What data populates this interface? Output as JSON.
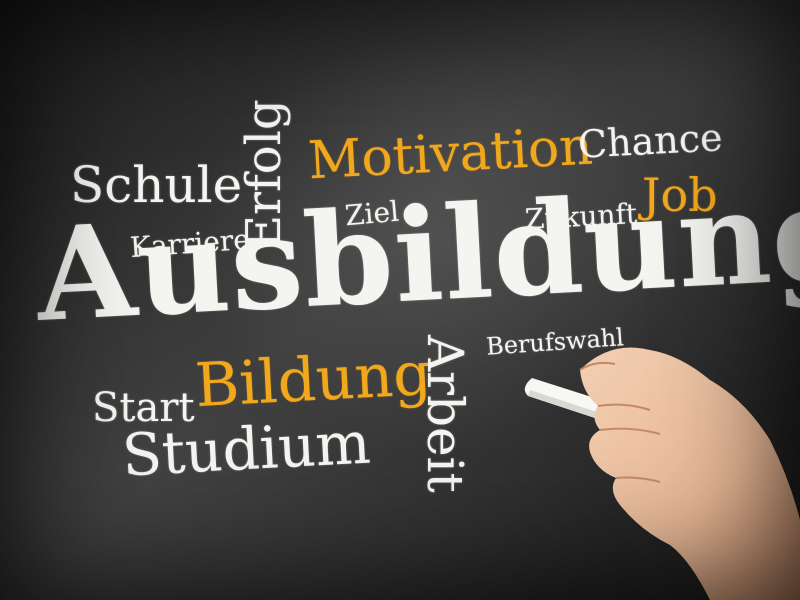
{
  "words": {
    "ausbildung": "Ausbildung",
    "schule": "Schule",
    "erfolg": "Erfolg",
    "motivation": "Motivation",
    "chance": "Chance",
    "job": "Job",
    "karriere": "Karriere",
    "ziel": "Ziel",
    "zukunft": "Zukunft",
    "berufswahl": "Berufswahl",
    "start": "Start",
    "bildung": "Bildung",
    "studium": "Studium",
    "arbeit": "Arbeit"
  },
  "colors": {
    "chalk_white": "#f4f4f0",
    "chalk_orange": "#f2a81d",
    "board": "#2c2c2c"
  }
}
